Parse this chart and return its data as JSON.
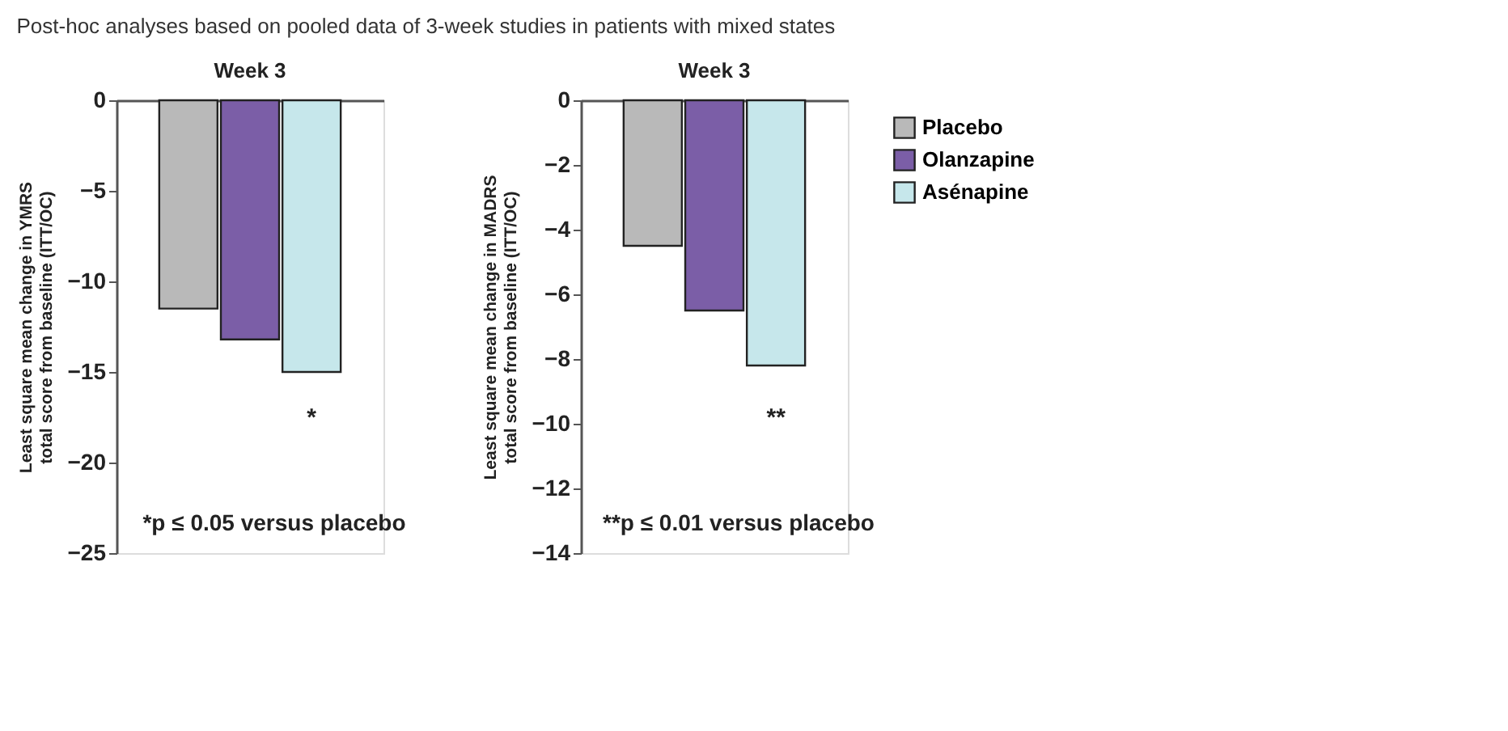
{
  "chart_data": [
    {
      "type": "bar",
      "title": "Week 3",
      "ylabel": "Least square mean change in YMRS\ntotal score from baseline (ITT/OC)",
      "categories": [
        null
      ],
      "series": [
        {
          "color": "#b9b9b9",
          "values": [
            -11.5
          ]
        },
        {
          "color": "#7b5ea7",
          "values": [
            -13.2
          ]
        },
        {
          "color": "#c6e7eb",
          "values": [
            -15.0
          ]
        }
      ],
      "ylim": [
        -25,
        0
      ],
      "yticks": [
        0,
        -5,
        -10,
        -15,
        -20,
        -25
      ],
      "grid": false,
      "legend": false,
      "tick_labels": "y",
      "annotations": [
        "Post-hoc analyses based on pooled data of 3-week studies in patients with mixed states",
        "*",
        "*p ≤ 0.05 versus placebo"
      ]
    },
    {
      "type": "bar",
      "title": "Week 3",
      "ylabel": "Least square mean change in MADRS\ntotal score from baseline (ITT/OC)",
      "categories": [
        null
      ],
      "series": [
        {
          "name": "Placebo",
          "color": "#b9b9b9",
          "values": [
            -4.5
          ]
        },
        {
          "name": "Olanzapine",
          "color": "#7b5ea7",
          "values": [
            -6.5
          ]
        },
        {
          "name": "Asénapine",
          "color": "#c6e7eb",
          "values": [
            -8.2
          ]
        }
      ],
      "ylim": [
        -14,
        0
      ],
      "yticks": [
        0,
        -2,
        -4,
        -6,
        -8,
        -10,
        -12,
        -14
      ],
      "grid": false,
      "legend": "right",
      "tick_labels": "y",
      "annotations": [
        "**",
        "**p ≤ 0.01 versus placebo"
      ]
    }
  ]
}
